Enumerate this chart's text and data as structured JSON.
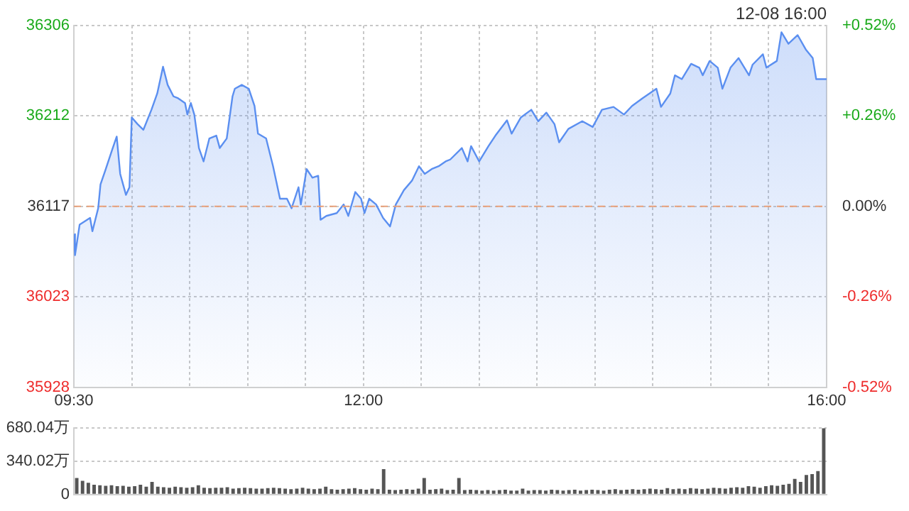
{
  "chart_data": [
    {
      "type": "area",
      "subtitle": "12-08 16:00",
      "color": "#5b8ff0",
      "x": [
        9.5,
        9.51,
        9.55,
        9.64,
        9.66,
        9.71,
        9.73,
        9.77,
        9.83,
        9.87,
        9.9,
        9.95,
        9.98,
        10.0,
        10.05,
        10.1,
        10.17,
        10.22,
        10.27,
        10.31,
        10.36,
        10.4,
        10.46,
        10.48,
        10.51,
        10.54,
        10.58,
        10.62,
        10.67,
        10.73,
        10.76,
        10.82,
        10.87,
        10.89,
        10.95,
        11.01,
        11.06,
        11.09,
        11.16,
        11.22,
        11.28,
        11.34,
        11.38,
        11.44,
        11.46,
        11.51,
        11.56,
        11.61,
        11.63,
        11.68,
        11.77,
        11.83,
        11.87,
        11.93,
        11.98,
        12.01,
        12.05,
        12.11,
        12.17,
        12.23,
        12.28,
        12.35,
        12.42,
        12.48,
        12.53,
        12.59,
        12.65,
        12.71,
        12.75,
        12.85,
        12.9,
        12.93,
        13.0,
        13.08,
        13.14,
        13.24,
        13.28,
        13.36,
        13.45,
        13.51,
        13.58,
        13.65,
        13.69,
        13.77,
        13.89,
        13.98,
        14.06,
        14.16,
        14.25,
        14.32,
        14.41,
        14.53,
        14.57,
        14.65,
        14.69,
        14.75,
        14.83,
        14.9,
        14.93,
        14.99,
        15.06,
        15.1,
        15.17,
        15.24,
        15.33,
        15.36,
        15.45,
        15.48,
        15.57,
        15.61,
        15.67,
        15.75,
        15.82,
        15.88,
        15.91,
        16.0
      ],
      "values": [
        36088,
        36066,
        36098,
        36105,
        36091,
        36115,
        36140,
        36154,
        36176,
        36190,
        36151,
        36129,
        36137,
        36210,
        36203,
        36197,
        36218,
        36235,
        36263,
        36244,
        36232,
        36230,
        36225,
        36213,
        36225,
        36213,
        36178,
        36164,
        36188,
        36191,
        36178,
        36188,
        36232,
        36240,
        36244,
        36240,
        36222,
        36193,
        36188,
        36159,
        36125,
        36125,
        36115,
        36137,
        36119,
        36156,
        36147,
        36149,
        36103,
        36107,
        36110,
        36119,
        36107,
        36132,
        36125,
        36110,
        36125,
        36119,
        36105,
        36096,
        36119,
        36134,
        36144,
        36159,
        36151,
        36156,
        36159,
        36164,
        36166,
        36178,
        36164,
        36180,
        36164,
        36180,
        36191,
        36207,
        36193,
        36210,
        36218,
        36206,
        36215,
        36203,
        36184,
        36198,
        36206,
        36200,
        36218,
        36221,
        36213,
        36222,
        36230,
        36240,
        36221,
        36235,
        36254,
        36250,
        36266,
        36262,
        36254,
        36269,
        36262,
        36240,
        36262,
        36272,
        36254,
        36265,
        36276,
        36262,
        36269,
        36299,
        36287,
        36296,
        36281,
        36272,
        36250,
        36250
      ],
      "xlim": [
        9.5,
        16
      ],
      "xticks": [
        {
          "value": 9.5,
          "label": "09:30"
        },
        {
          "value": 10,
          "label": null
        },
        {
          "value": 10.5,
          "label": null
        },
        {
          "value": 11,
          "label": null
        },
        {
          "value": 11.5,
          "label": null
        },
        {
          "value": 12,
          "label": "12:00"
        },
        {
          "value": 12.5,
          "label": null
        },
        {
          "value": 13,
          "label": null
        },
        {
          "value": 13.5,
          "label": null
        },
        {
          "value": 14,
          "label": null
        },
        {
          "value": 14.5,
          "label": null
        },
        {
          "value": 15,
          "label": null
        },
        {
          "value": 15.5,
          "label": null
        },
        {
          "value": 16,
          "label": "16:00"
        }
      ],
      "ylim": [
        35928,
        36306
      ],
      "yticks": [
        35928,
        36023,
        36117,
        36212,
        36306
      ],
      "y2lim": [
        -0.52,
        0.52
      ],
      "y2ticks": [
        {
          "value": -0.52,
          "label": "-0.52%"
        },
        {
          "value": -0.26,
          "label": "-0.26%"
        },
        {
          "value": 0,
          "label": "0.00%"
        },
        {
          "value": 0.26,
          "label": "+0.26%"
        },
        {
          "value": 0.52,
          "label": "+0.52%"
        }
      ],
      "ref_lines": [
        {
          "axis": "y",
          "value": 36117,
          "color": "#e8a07a",
          "line_style": "dashed"
        }
      ],
      "grid": true,
      "legend": false,
      "marker": "none"
    },
    {
      "type": "bar",
      "color": "#555555",
      "categories": [
        null,
        null,
        null,
        null,
        null,
        null,
        null,
        null,
        null,
        null,
        null,
        null,
        null,
        null,
        null,
        null,
        null,
        null,
        null,
        null,
        null,
        null,
        null,
        null,
        null,
        null,
        null,
        null,
        null,
        null,
        null,
        null,
        null,
        null,
        null,
        null,
        null,
        null,
        null,
        null,
        null,
        null,
        null,
        null,
        null,
        null,
        null,
        null,
        null,
        null,
        null,
        null,
        null,
        null,
        null,
        null,
        null,
        null,
        null,
        null,
        null,
        null,
        null,
        null,
        null,
        null,
        null,
        null,
        null,
        null,
        null,
        null,
        null,
        null,
        null,
        null,
        null,
        null,
        null,
        null,
        null,
        null,
        null,
        null,
        null,
        null,
        null,
        null,
        null,
        null,
        null,
        null,
        null,
        null,
        null,
        null,
        null,
        null,
        null,
        null,
        null,
        null,
        null,
        null,
        null,
        null,
        null,
        null,
        null,
        null,
        null,
        null,
        null,
        null,
        null,
        null,
        null,
        null,
        null,
        null,
        null,
        null,
        null,
        null,
        null,
        null,
        null,
        null,
        null,
        null
      ],
      "values": [
        170,
        140,
        120,
        100,
        95,
        90,
        95,
        85,
        90,
        80,
        85,
        100,
        80,
        130,
        80,
        75,
        70,
        80,
        75,
        70,
        75,
        95,
        70,
        65,
        70,
        70,
        75,
        60,
        65,
        70,
        65,
        60,
        60,
        65,
        70,
        65,
        60,
        55,
        60,
        70,
        60,
        55,
        60,
        80,
        55,
        50,
        55,
        60,
        65,
        55,
        50,
        60,
        55,
        260,
        50,
        45,
        50,
        55,
        50,
        60,
        170,
        50,
        55,
        60,
        45,
        50,
        170,
        45,
        50,
        45,
        40,
        45,
        40,
        45,
        50,
        40,
        40,
        60,
        40,
        45,
        45,
        40,
        50,
        45,
        40,
        45,
        50,
        40,
        45,
        50,
        45,
        40,
        50,
        55,
        45,
        50,
        55,
        50,
        55,
        60,
        55,
        50,
        65,
        55,
        60,
        55,
        65,
        60,
        55,
        60,
        70,
        65,
        60,
        70,
        75,
        70,
        85,
        80,
        70,
        85,
        95,
        90,
        100,
        110,
        160,
        130,
        200,
        210,
        240,
        680
      ],
      "ylim": [
        0,
        680.04
      ],
      "yticks": [
        0,
        {
          "value": 340.02,
          "label": "340.02万"
        },
        {
          "value": 680.04,
          "label": "680.04万"
        }
      ],
      "grid": "y",
      "legend": false
    }
  ]
}
